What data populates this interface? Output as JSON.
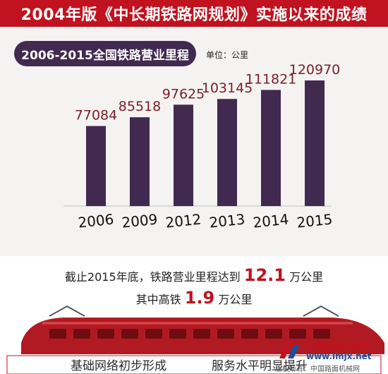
{
  "banner": {
    "title": "2004年版《中长期铁路网规划》实施以来的成绩"
  },
  "chart_data": {
    "type": "bar",
    "title": "2006-2015全国铁路营业里程",
    "unit": "单位：公里",
    "categories": [
      "2006",
      "2009",
      "2012",
      "2013",
      "2014",
      "2015"
    ],
    "values": [
      77084,
      85518,
      97625,
      103145,
      111821,
      120970
    ],
    "colors": {
      "bar": "#42294f",
      "value_label": "#7a1f27"
    },
    "grid": false
  },
  "summary": {
    "line1_prefix": "截止2015年底，铁路营业里程达到",
    "line1_value": "12.1",
    "line1_suffix": "万公里",
    "line2_prefix": "其中高铁",
    "line2_value": "1.9",
    "line2_suffix": "万公里"
  },
  "footer": {
    "left_label": "基础网络初步形成",
    "right_label": "服务水平明显提升"
  },
  "watermark": {
    "name": "中国路面机械网",
    "url": "www.lmjx.net",
    "copyright": "版权所有：中国路面机械网"
  },
  "colors": {
    "accent": "#c0121f",
    "bar": "#42294f"
  }
}
